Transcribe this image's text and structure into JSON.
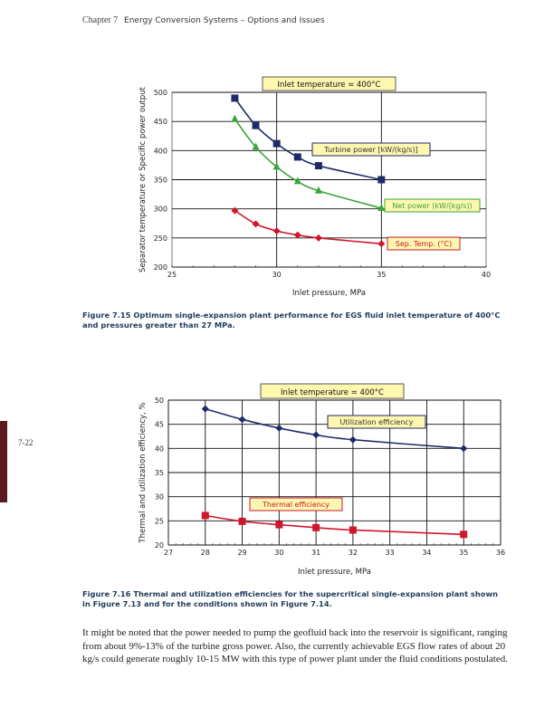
{
  "header": {
    "chapter": "Chapter 7",
    "title": "Energy Conversion Systems – Options and Issues"
  },
  "page_number": "7-22",
  "chart_data": [
    {
      "type": "line",
      "title": "Inlet temperature = 400°C",
      "xlabel": "Inlet pressure, MPa",
      "ylabel": "Separator temperature or Specific power output",
      "xlim": [
        25,
        40
      ],
      "ylim": [
        200,
        500
      ],
      "xticks": [
        25,
        30,
        35,
        40
      ],
      "yticks": [
        200,
        250,
        300,
        350,
        400,
        450,
        500
      ],
      "grid": "horizontal every 50, vertical at 30 and 35",
      "series": [
        {
          "name": "Turbine power [kW/(kg/s)]",
          "marker": "square",
          "color": "#1f2a6b",
          "x": [
            28,
            29,
            30,
            31,
            32,
            35
          ],
          "y": [
            490,
            443,
            412,
            389,
            374,
            350
          ]
        },
        {
          "name": "Net power (kW/(kg/s))",
          "marker": "triangle",
          "color": "#3aa53a",
          "x": [
            28,
            29,
            30,
            31,
            32,
            35
          ],
          "y": [
            454,
            406,
            372,
            347,
            331,
            301
          ]
        },
        {
          "name": "Sep. Temp. (°C)",
          "marker": "diamond",
          "color": "#d0162b",
          "x": [
            28,
            29,
            30,
            31,
            32,
            35
          ],
          "y": [
            297,
            274,
            262,
            255,
            250,
            240
          ]
        }
      ]
    },
    {
      "type": "line",
      "title": "Inlet temperature = 400°C",
      "xlabel": "Inlet pressure, MPa",
      "ylabel": "Thermal and utilization efficiency, %",
      "xlim": [
        27,
        36
      ],
      "ylim": [
        20,
        50
      ],
      "xticks": [
        27,
        28,
        29,
        30,
        31,
        32,
        33,
        34,
        35,
        36
      ],
      "yticks": [
        20,
        25,
        30,
        35,
        40,
        45,
        50
      ],
      "grid": "both",
      "series": [
        {
          "name": "Utilization efficiency",
          "marker": "diamond",
          "color": "#1f2a6b",
          "x": [
            28,
            29,
            30,
            31,
            32,
            35
          ],
          "y": [
            48.2,
            46.0,
            44.2,
            42.8,
            41.8,
            40.0
          ]
        },
        {
          "name": "Thermal efficiency",
          "marker": "square",
          "color": "#d0162b",
          "x": [
            28,
            29,
            30,
            31,
            32,
            35
          ],
          "y": [
            26.1,
            24.9,
            24.2,
            23.6,
            23.1,
            22.2
          ]
        }
      ]
    }
  ],
  "captions": {
    "fig715": "Figure 7.15 Optimum single-expansion plant performance for EGS fluid inlet temperature of 400°C and pressures greater than 27 MPa.",
    "fig716": "Figure 7.16 Thermal and utilization efficiencies for the supercritical single-expansion plant shown in Figure 7.13 and for the conditions shown in Figure 7.14."
  },
  "body_text": "It might be noted that the power needed to pump the geofluid back into the reservoir is significant, ranging from about 9%-13% of the turbine gross power. Also, the currently achievable EGS flow rates of about 20 kg/s could generate roughly 10-15 MW with this type of power plant under the fluid conditions postulated.",
  "colors": {
    "title_box": "#fdf7b0",
    "caption": "#1f3b5c",
    "sidebar": "#5a1a22"
  }
}
